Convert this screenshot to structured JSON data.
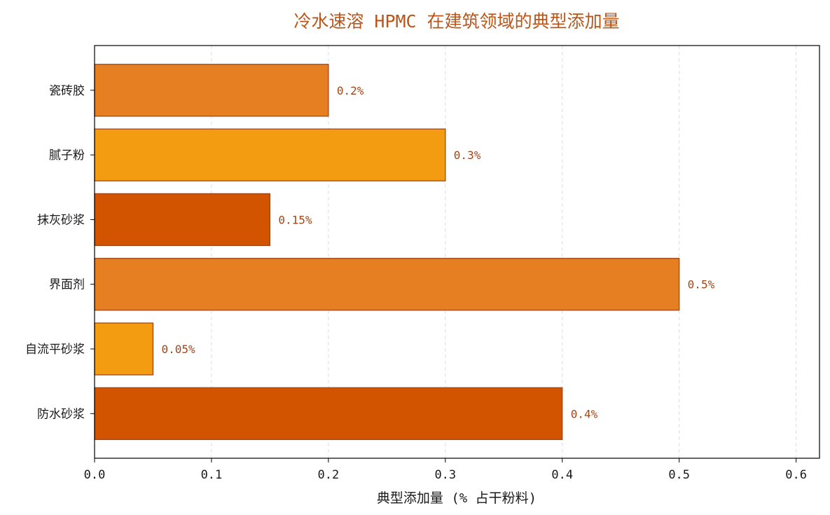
{
  "chart_data": {
    "type": "bar",
    "orientation": "horizontal",
    "title": "冷水速溶 HPMC 在建筑领域的典型添加量",
    "xlabel": "典型添加量 (% 占干粉料)",
    "ylabel": "",
    "categories": [
      "瓷砖胶",
      "腻子粉",
      "抹灰砂浆",
      "界面剂",
      "自流平砂浆",
      "防水砂浆"
    ],
    "values": [
      0.2,
      0.3,
      0.15,
      0.5,
      0.05,
      0.4
    ],
    "data_labels": [
      "0.2%",
      "0.3%",
      "0.15%",
      "0.5%",
      "0.05%",
      "0.4%"
    ],
    "bar_colors": [
      "#e67e22",
      "#f39c12",
      "#d35400",
      "#e67e22",
      "#f39c12",
      "#d35400"
    ],
    "edge_color": "#a0471a",
    "xlim": [
      0,
      0.62
    ],
    "xticks": [
      0.0,
      0.1,
      0.2,
      0.3,
      0.4,
      0.5,
      0.6
    ],
    "xtick_labels": [
      "0.0",
      "0.1",
      "0.2",
      "0.3",
      "0.4",
      "0.5",
      "0.6"
    ],
    "grid": "x-dashed",
    "legend": "none"
  },
  "colors": {
    "title": "#b8561a",
    "label": "#a0471a",
    "grid": "#dddddd",
    "axis": "#000000"
  }
}
